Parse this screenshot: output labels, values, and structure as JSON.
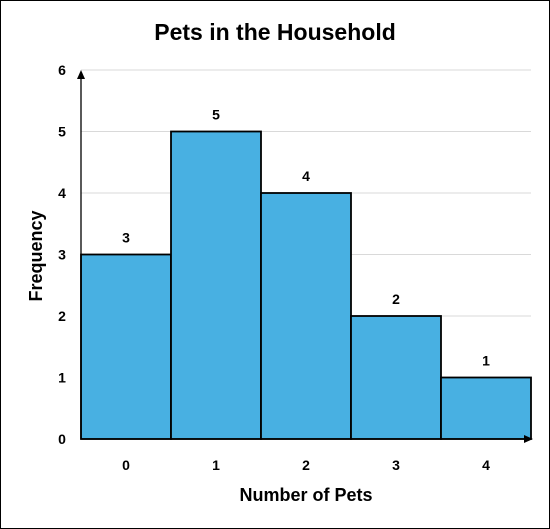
{
  "chart_data": {
    "type": "bar",
    "title": "Pets in the Household",
    "xlabel": "Number of Pets",
    "ylabel": "Frequency",
    "categories": [
      "0",
      "1",
      "2",
      "3",
      "4"
    ],
    "values": [
      3,
      5,
      4,
      2,
      1
    ],
    "ylim": [
      0,
      6
    ],
    "yticks": [
      "0",
      "1",
      "2",
      "3",
      "4",
      "5",
      "6"
    ],
    "grid": true,
    "bar_color": "#48b0e2",
    "data_labels": true
  }
}
